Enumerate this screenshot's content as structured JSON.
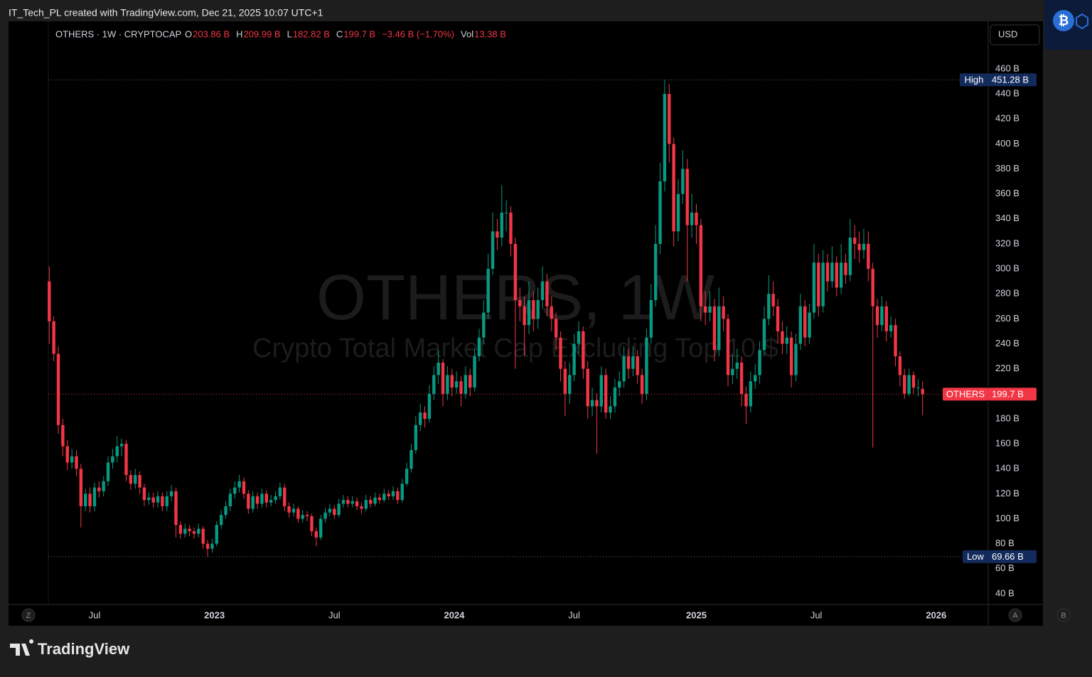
{
  "header": {
    "credit": "IT_Tech_PL created with TradingView.com, Dec 21, 2025 10:07 UTC+1"
  },
  "chart_data": {
    "type": "candlestick",
    "watermark": {
      "title": "OTHERS, 1W",
      "subtitle": "Crypto Total Market Cap Excluding Top 10 $"
    },
    "legend": {
      "symbol": "OTHERS · 1W · CRYPTOCAP",
      "open_label": "O",
      "open": "203.86 B",
      "high_label": "H",
      "high": "209.99 B",
      "low_label": "L",
      "low": "182.82 B",
      "close_label": "C",
      "close": "199.7 B",
      "change": "−3.46 B (−1.70%)",
      "volume_label": "Vol",
      "volume": "13.38 B"
    },
    "currency": "USD",
    "up_color": "#089981",
    "down_color": "#f23645",
    "open": [
      290,
      258,
      232,
      175,
      158,
      145,
      150,
      140,
      110,
      120,
      110,
      125,
      122,
      130,
      145,
      150,
      158,
      160,
      135,
      128,
      135,
      125,
      115,
      117,
      113,
      118,
      110,
      118,
      122,
      95,
      88,
      92,
      90,
      88,
      92,
      80,
      76,
      80,
      95,
      103,
      110,
      120,
      125,
      130,
      120,
      108,
      118,
      112,
      120,
      113,
      115,
      118,
      125,
      110,
      105,
      108,
      100,
      103,
      102,
      90,
      85,
      100,
      105,
      108,
      103,
      112,
      115,
      112,
      114,
      110,
      108,
      115,
      112,
      117,
      115,
      120,
      118,
      122,
      115,
      128,
      140,
      155,
      175,
      185,
      180,
      200,
      215,
      225,
      200,
      215,
      205,
      210,
      200,
      215,
      205,
      230,
      245,
      265,
      300,
      330,
      325,
      345,
      345,
      320,
      275,
      270,
      255,
      275,
      260,
      275,
      290,
      270,
      260,
      245,
      220,
      200,
      215,
      240,
      250,
      220,
      190,
      195,
      190,
      215,
      185,
      190,
      205,
      210,
      230,
      220,
      230,
      215,
      200,
      245,
      275,
      320,
      370,
      440,
      400,
      330,
      360,
      380,
      335,
      345,
      335,
      270,
      265,
      270,
      235,
      270,
      260,
      215,
      220,
      225,
      200,
      190,
      210,
      215,
      235,
      260,
      280,
      270,
      250,
      240,
      245,
      215,
      240,
      270,
      245,
      265,
      305,
      270,
      305,
      290,
      305,
      285,
      305,
      295,
      325,
      320,
      315,
      320,
      300,
      270,
      255,
      270,
      250,
      255,
      230,
      215,
      200,
      215,
      205,
      203.86
    ],
    "high": [
      302,
      262,
      238,
      180,
      163,
      156,
      155,
      144,
      124,
      125,
      129,
      130,
      134,
      150,
      156,
      166,
      164,
      163,
      139,
      140,
      138,
      128,
      121,
      121,
      122,
      121,
      122,
      127,
      125,
      98,
      96,
      95,
      93,
      96,
      94,
      83,
      84,
      98,
      107,
      114,
      124,
      130,
      135,
      133,
      123,
      122,
      121,
      124,
      123,
      119,
      122,
      129,
      128,
      113,
      112,
      110,
      107,
      106,
      104,
      93,
      103,
      109,
      112,
      111,
      116,
      119,
      118,
      118,
      117,
      113,
      119,
      118,
      121,
      120,
      124,
      123,
      126,
      125,
      132,
      145,
      160,
      182,
      192,
      190,
      207,
      222,
      235,
      228,
      222,
      220,
      218,
      214,
      222,
      220,
      236,
      252,
      275,
      312,
      345,
      340,
      367,
      355,
      350,
      325,
      285,
      278,
      290,
      282,
      285,
      302,
      296,
      278,
      265,
      250,
      226,
      225,
      248,
      258,
      254,
      226,
      205,
      200,
      222,
      220,
      198,
      212,
      218,
      238,
      236,
      238,
      235,
      220,
      252,
      288,
      335,
      385,
      451.28,
      448,
      405,
      372,
      395,
      388,
      360,
      352,
      340,
      282,
      282,
      276,
      285,
      278,
      264,
      232,
      236,
      230,
      206,
      218,
      224,
      242,
      270,
      295,
      290,
      276,
      258,
      254,
      250,
      248,
      280,
      275,
      272,
      320,
      312,
      315,
      312,
      318,
      310,
      320,
      312,
      340,
      335,
      330,
      332,
      330,
      305,
      276,
      278,
      274,
      262,
      260,
      234,
      220,
      220,
      218,
      212,
      209.99
    ],
    "low": [
      240,
      226,
      168,
      150,
      139,
      140,
      134,
      93,
      106,
      105,
      106,
      117,
      118,
      126,
      140,
      145,
      150,
      130,
      123,
      124,
      120,
      110,
      111,
      109,
      109,
      106,
      106,
      114,
      85,
      84,
      85,
      86,
      84,
      85,
      76,
      69.66,
      73,
      78,
      92,
      100,
      106,
      116,
      121,
      116,
      104,
      105,
      108,
      109,
      109,
      110,
      112,
      115,
      106,
      101,
      102,
      97,
      97,
      98,
      86,
      78,
      83,
      97,
      102,
      100,
      101,
      109,
      109,
      109,
      107,
      104,
      106,
      109,
      110,
      112,
      113,
      115,
      115,
      112,
      113,
      126,
      137,
      152,
      170,
      173,
      177,
      195,
      208,
      190,
      195,
      198,
      200,
      190,
      196,
      198,
      202,
      226,
      240,
      260,
      295,
      315,
      318,
      330,
      310,
      220,
      258,
      230,
      248,
      250,
      252,
      268,
      262,
      250,
      235,
      210,
      182,
      192,
      210,
      232,
      212,
      180,
      182,
      152,
      185,
      180,
      180,
      185,
      198,
      205,
      212,
      214,
      208,
      192,
      195,
      240,
      270,
      312,
      362,
      385,
      318,
      322,
      352,
      290,
      325,
      320,
      258,
      255,
      258,
      226,
      230,
      250,
      206,
      208,
      212,
      190,
      176,
      185,
      204,
      208,
      230,
      255,
      262,
      240,
      232,
      232,
      205,
      210,
      235,
      238,
      240,
      260,
      262,
      265,
      282,
      285,
      278,
      280,
      288,
      290,
      308,
      305,
      308,
      290,
      157,
      245,
      250,
      242,
      245,
      222,
      206,
      196,
      198,
      200,
      198,
      182.82
    ],
    "close": [
      258,
      232,
      175,
      158,
      145,
      150,
      140,
      110,
      120,
      110,
      125,
      122,
      130,
      145,
      150,
      158,
      160,
      135,
      128,
      135,
      125,
      115,
      117,
      113,
      118,
      110,
      118,
      122,
      95,
      88,
      92,
      90,
      88,
      92,
      80,
      76,
      80,
      95,
      103,
      110,
      120,
      125,
      130,
      120,
      108,
      118,
      112,
      120,
      113,
      115,
      118,
      125,
      110,
      105,
      108,
      100,
      103,
      102,
      90,
      85,
      100,
      105,
      108,
      103,
      112,
      115,
      112,
      114,
      110,
      108,
      115,
      112,
      117,
      115,
      120,
      118,
      122,
      115,
      128,
      140,
      155,
      175,
      185,
      180,
      200,
      215,
      225,
      200,
      215,
      205,
      210,
      200,
      215,
      205,
      230,
      245,
      265,
      300,
      330,
      325,
      345,
      345,
      320,
      275,
      270,
      255,
      275,
      260,
      275,
      290,
      270,
      260,
      245,
      220,
      200,
      215,
      240,
      250,
      220,
      190,
      195,
      190,
      215,
      185,
      190,
      205,
      210,
      230,
      220,
      230,
      215,
      200,
      245,
      275,
      320,
      370,
      440,
      400,
      330,
      360,
      380,
      335,
      345,
      335,
      270,
      265,
      270,
      235,
      270,
      260,
      215,
      220,
      225,
      200,
      190,
      210,
      215,
      235,
      260,
      280,
      270,
      250,
      240,
      245,
      215,
      240,
      270,
      245,
      265,
      305,
      270,
      305,
      290,
      305,
      285,
      305,
      295,
      325,
      320,
      315,
      320,
      300,
      270,
      255,
      270,
      250,
      255,
      230,
      215,
      200,
      215,
      205,
      205,
      199.7
    ],
    "xlim": [
      -9,
      207.5
    ],
    "xticks": [
      {
        "value": 10,
        "label": "Jul"
      },
      {
        "value": 36.5,
        "label": "2023"
      },
      {
        "value": 63,
        "label": "Jul"
      },
      {
        "value": 89.5,
        "label": "2024"
      },
      {
        "value": 116,
        "label": "Jul"
      },
      {
        "value": 143,
        "label": "2025"
      },
      {
        "value": 169.5,
        "label": "Jul"
      },
      {
        "value": 196,
        "label": "2026"
      }
    ],
    "ylim": [
      31.4,
      498.1
    ],
    "yticks": [
      {
        "value": 40,
        "label": "40 B"
      },
      {
        "value": 60,
        "label": "60 B"
      },
      {
        "value": 80,
        "label": "80 B"
      },
      {
        "value": 100,
        "label": "100 B"
      },
      {
        "value": 120,
        "label": "120 B"
      },
      {
        "value": 140,
        "label": "140 B"
      },
      {
        "value": 160,
        "label": "160 B"
      },
      {
        "value": 180,
        "label": "180 B"
      },
      {
        "value": 200,
        "label": "200 B"
      },
      {
        "value": 220,
        "label": "220 B"
      },
      {
        "value": 240,
        "label": "240 B"
      },
      {
        "value": 260,
        "label": "260 B"
      },
      {
        "value": 280,
        "label": "280 B"
      },
      {
        "value": 300,
        "label": "300 B"
      },
      {
        "value": 320,
        "label": "320 B"
      },
      {
        "value": 340,
        "label": "340 B"
      },
      {
        "value": 360,
        "label": "360 B"
      },
      {
        "value": 380,
        "label": "380 B"
      },
      {
        "value": 400,
        "label": "400 B"
      },
      {
        "value": 420,
        "label": "420 B"
      },
      {
        "value": 440,
        "label": "440 B"
      },
      {
        "value": 460,
        "label": "460 B"
      }
    ],
    "grid": false,
    "high_marker": {
      "label": "High",
      "value": 451.28,
      "value_label": "451.28 B",
      "color": "#132b5c"
    },
    "low_marker": {
      "label": "Low",
      "value": 69.66,
      "value_label": "69.66 B",
      "color": "#132b5c"
    },
    "last_marker": {
      "label": "OTHERS",
      "value": 199.7,
      "value_label": "199.7 B",
      "color": "#f23645"
    },
    "buttons": {
      "left": "Z",
      "auto": "A",
      "base": "B"
    }
  },
  "footer": {
    "brand": "TradingView"
  }
}
